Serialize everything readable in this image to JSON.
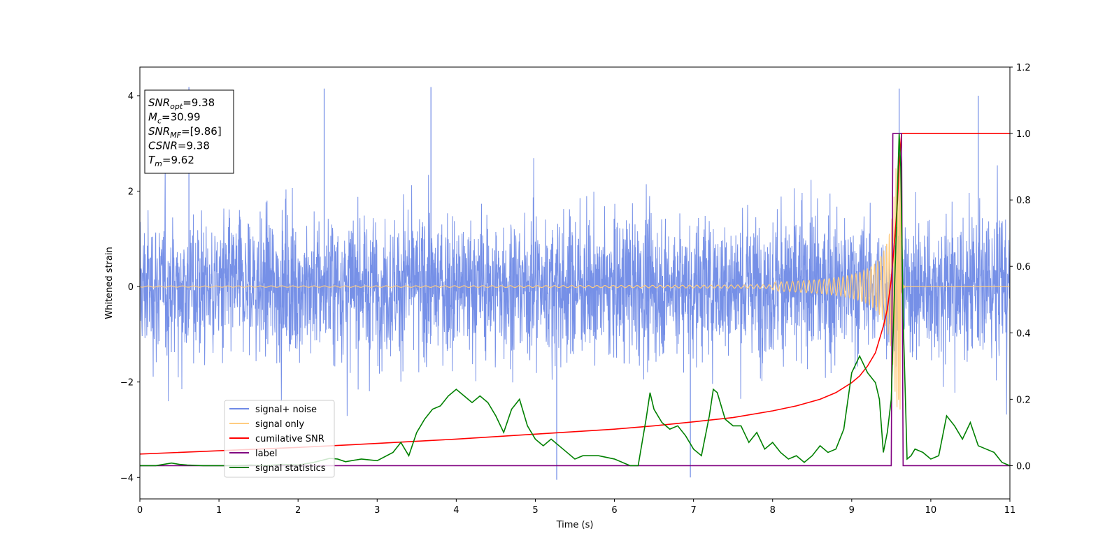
{
  "chart_data": {
    "type": "line",
    "xlabel": "Time (s)",
    "ylabel": "Whitened strain",
    "xlim": [
      0,
      11
    ],
    "ylim": [
      -4.45,
      4.6
    ],
    "y2lim": [
      -0.1,
      1.2
    ],
    "x_ticks": [
      "0",
      "1",
      "2",
      "3",
      "4",
      "5",
      "6",
      "7",
      "8",
      "9",
      "10",
      "11"
    ],
    "y_ticks": [
      "−4",
      "−2",
      "0",
      "2",
      "4"
    ],
    "y2_ticks": [
      "0.0",
      "0.2",
      "0.4",
      "0.6",
      "0.8",
      "1.0",
      "1.2"
    ],
    "grid": false,
    "legend_position": "lower-left",
    "legend": [
      {
        "label": "signal+ noise",
        "color": "#6f8ae6"
      },
      {
        "label": "signal only",
        "color": "#ffcc80"
      },
      {
        "label": "cumilative SNR",
        "color": "#ff0000"
      },
      {
        "label": "label",
        "color": "#800080"
      },
      {
        "label": "signal statistics",
        "color": "#008000"
      }
    ],
    "info_box": [
      {
        "base": "SNR",
        "sub": "opt",
        "rest": "=9.38"
      },
      {
        "base": "M",
        "sub": "c",
        "rest": "=30.99"
      },
      {
        "base": "SNR",
        "sub": "MF",
        "rest": "=[9.86]"
      },
      {
        "base": "CSNR",
        "sub": "",
        "rest": "=9.38"
      },
      {
        "base": "T",
        "sub": "m",
        "rest": "=9.62"
      }
    ],
    "series": [
      {
        "name": "signal+ noise",
        "axis": "left",
        "color": "#6f8ae6",
        "kind": "noise",
        "t_start": 0,
        "t_end": 11,
        "envelope": 2.2,
        "peak_extent": 4.2,
        "notable_spikes": [
          [
            0.62,
            4.18
          ],
          [
            2.33,
            4.15
          ],
          [
            3.68,
            4.18
          ],
          [
            5.27,
            -4.05
          ],
          [
            6.96,
            -4.0
          ],
          [
            9.6,
            4.15
          ],
          [
            10.6,
            4.0
          ]
        ]
      },
      {
        "name": "signal only",
        "axis": "left",
        "color": "#ffcc80",
        "kind": "chirp",
        "t_merge": 9.62,
        "peak_amplitude": 2.6
      },
      {
        "name": "cumilative SNR",
        "axis": "right",
        "color": "#ff0000",
        "x": [
          0,
          1,
          2,
          3,
          4,
          5,
          6,
          6.5,
          7,
          7.5,
          8,
          8.3,
          8.6,
          8.8,
          9.0,
          9.1,
          9.2,
          9.3,
          9.4,
          9.45,
          9.5,
          9.55,
          9.58,
          9.6,
          9.62,
          9.63,
          10,
          11
        ],
        "y": [
          0.035,
          0.045,
          0.055,
          0.067,
          0.08,
          0.095,
          0.11,
          0.12,
          0.132,
          0.145,
          0.165,
          0.18,
          0.2,
          0.22,
          0.25,
          0.27,
          0.3,
          0.34,
          0.42,
          0.47,
          0.56,
          0.7,
          0.8,
          0.9,
          0.97,
          1.0,
          1.0,
          1.0
        ]
      },
      {
        "name": "label",
        "axis": "right",
        "color": "#800080",
        "x": [
          0,
          9.5,
          9.52,
          9.63,
          9.65,
          11
        ],
        "y": [
          0,
          0,
          1,
          1,
          0,
          0
        ]
      },
      {
        "name": "signal statistics",
        "axis": "right",
        "color": "#008000",
        "x": [
          0,
          0.2,
          0.4,
          0.5,
          0.6,
          0.8,
          1.0,
          1.2,
          1.4,
          1.6,
          1.8,
          2.0,
          2.2,
          2.4,
          2.5,
          2.6,
          2.8,
          3.0,
          3.2,
          3.3,
          3.4,
          3.5,
          3.6,
          3.7,
          3.8,
          3.9,
          4.0,
          4.1,
          4.2,
          4.3,
          4.4,
          4.5,
          4.6,
          4.7,
          4.8,
          4.9,
          5.0,
          5.1,
          5.2,
          5.3,
          5.4,
          5.5,
          5.6,
          5.8,
          6.0,
          6.2,
          6.3,
          6.4,
          6.45,
          6.5,
          6.6,
          6.7,
          6.8,
          6.9,
          7.0,
          7.1,
          7.2,
          7.25,
          7.3,
          7.4,
          7.5,
          7.6,
          7.7,
          7.8,
          7.9,
          8.0,
          8.1,
          8.2,
          8.3,
          8.4,
          8.5,
          8.6,
          8.7,
          8.8,
          8.9,
          9.0,
          9.1,
          9.2,
          9.3,
          9.35,
          9.4,
          9.45,
          9.5,
          9.55,
          9.6,
          9.62,
          9.65,
          9.7,
          9.75,
          9.8,
          9.9,
          10.0,
          10.1,
          10.2,
          10.3,
          10.4,
          10.5,
          10.6,
          10.7,
          10.8,
          10.9,
          11.0
        ],
        "y": [
          0.0,
          0.0,
          0.008,
          0.004,
          0.002,
          0.0,
          0.0,
          0.0,
          0.002,
          0.0,
          0.004,
          0.002,
          0.01,
          0.022,
          0.02,
          0.012,
          0.02,
          0.015,
          0.04,
          0.07,
          0.03,
          0.1,
          0.14,
          0.17,
          0.18,
          0.21,
          0.23,
          0.21,
          0.19,
          0.21,
          0.19,
          0.15,
          0.1,
          0.17,
          0.2,
          0.12,
          0.08,
          0.06,
          0.08,
          0.06,
          0.04,
          0.02,
          0.03,
          0.03,
          0.02,
          0.0,
          0.0,
          0.14,
          0.22,
          0.17,
          0.13,
          0.11,
          0.12,
          0.09,
          0.05,
          0.03,
          0.15,
          0.23,
          0.22,
          0.14,
          0.12,
          0.12,
          0.07,
          0.1,
          0.05,
          0.07,
          0.04,
          0.02,
          0.03,
          0.01,
          0.03,
          0.06,
          0.04,
          0.05,
          0.11,
          0.28,
          0.33,
          0.28,
          0.25,
          0.2,
          0.04,
          0.1,
          0.2,
          0.6,
          1.0,
          0.9,
          0.45,
          0.02,
          0.03,
          0.05,
          0.04,
          0.02,
          0.03,
          0.15,
          0.12,
          0.08,
          0.13,
          0.06,
          0.05,
          0.04,
          0.01,
          0.0
        ]
      }
    ]
  }
}
